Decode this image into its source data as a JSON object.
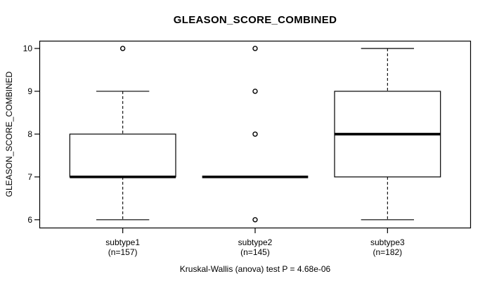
{
  "chart_data": {
    "type": "boxplot",
    "title": "GLEASON_SCORE_COMBINED",
    "ylabel": "GLEASON_SCORE_COMBINED",
    "xlabel": "",
    "ylim": [
      5.8,
      10.2
    ],
    "yticks": [
      6,
      7,
      8,
      9,
      10
    ],
    "grid": false,
    "annotation": "Kruskal-Wallis (anova) test P = 4.68e-06",
    "groups": [
      {
        "label": "subtype1",
        "count_label": "(n=157)",
        "n": 157,
        "q1": 7,
        "median": 7,
        "q3": 8,
        "whisker_low": 6,
        "whisker_high": 9,
        "outliers": [
          10
        ]
      },
      {
        "label": "subtype2",
        "count_label": "(n=145)",
        "n": 145,
        "q1": 7,
        "median": 7,
        "q3": 7,
        "whisker_low": 7,
        "whisker_high": 7,
        "outliers": [
          6,
          8,
          9,
          10
        ]
      },
      {
        "label": "subtype3",
        "count_label": "(n=182)",
        "n": 182,
        "q1": 7,
        "median": 8,
        "q3": 9,
        "whisker_low": 6,
        "whisker_high": 10,
        "outliers": []
      }
    ],
    "colors": {
      "line": "#000000",
      "box_fill": "#ffffff",
      "background": "#ffffff"
    }
  }
}
